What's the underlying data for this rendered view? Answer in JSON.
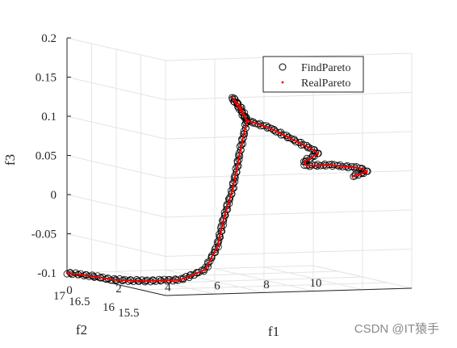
{
  "chart_data": {
    "type": "scatter",
    "projection": "3d",
    "axes": {
      "x": {
        "label": "f1",
        "range": [
          0,
          10
        ],
        "ticks": [
          "0",
          "2",
          "4",
          "6",
          "8",
          "10"
        ]
      },
      "y": {
        "label": "f2",
        "range": [
          15,
          17
        ],
        "ticks": [
          "17",
          "16.5",
          "16",
          "15.5"
        ]
      },
      "z": {
        "label": "f3",
        "range": [
          -0.1,
          0.2
        ],
        "ticks": [
          "-0.1",
          "-0.05",
          "0",
          "0.05",
          "0.1",
          "0.15",
          "0.2"
        ]
      }
    },
    "grid": true,
    "legend": {
      "placement": "top-right",
      "entries": [
        "FindPareto",
        "RealPareto"
      ]
    },
    "series": [
      {
        "name": "FindPareto",
        "marker": "open-circle",
        "color": "#000000",
        "path_points": [
          [
            0.0,
            17.0,
            -0.1
          ],
          [
            0.5,
            16.8,
            -0.101
          ],
          [
            1.0,
            16.55,
            -0.103
          ],
          [
            1.6,
            16.25,
            -0.101
          ],
          [
            2.4,
            15.9,
            -0.095
          ],
          [
            3.0,
            15.7,
            -0.08
          ],
          [
            3.4,
            15.65,
            -0.05
          ],
          [
            3.7,
            15.65,
            -0.01
          ],
          [
            4.0,
            15.65,
            0.02
          ],
          [
            4.2,
            15.65,
            0.05
          ],
          [
            4.35,
            15.65,
            0.075
          ],
          [
            4.5,
            15.65,
            0.095
          ],
          [
            4.6,
            15.65,
            0.11
          ],
          [
            4.3,
            15.65,
            0.13
          ],
          [
            4.0,
            15.65,
            0.14
          ],
          [
            4.6,
            15.65,
            0.11
          ],
          [
            5.5,
            15.65,
            0.1
          ],
          [
            6.7,
            15.65,
            0.08
          ],
          [
            7.3,
            15.65,
            0.07
          ],
          [
            7.5,
            15.65,
            0.065
          ],
          [
            6.9,
            15.65,
            0.055
          ],
          [
            7.0,
            15.65,
            0.05
          ],
          [
            8.0,
            15.65,
            0.05
          ],
          [
            9.2,
            15.65,
            0.045
          ],
          [
            9.5,
            15.65,
            0.04
          ],
          [
            8.9,
            15.65,
            0.035
          ]
        ]
      },
      {
        "name": "RealPareto",
        "marker": "point",
        "color": "#e00000",
        "path_points": [
          [
            0.0,
            17.0,
            -0.1
          ],
          [
            0.5,
            16.8,
            -0.101
          ],
          [
            1.0,
            16.55,
            -0.103
          ],
          [
            1.6,
            16.25,
            -0.101
          ],
          [
            2.4,
            15.9,
            -0.095
          ],
          [
            3.0,
            15.7,
            -0.08
          ],
          [
            3.4,
            15.65,
            -0.05
          ],
          [
            3.7,
            15.65,
            -0.01
          ],
          [
            4.0,
            15.65,
            0.02
          ],
          [
            4.2,
            15.65,
            0.05
          ],
          [
            4.35,
            15.65,
            0.075
          ],
          [
            4.5,
            15.65,
            0.095
          ],
          [
            4.6,
            15.65,
            0.11
          ],
          [
            4.3,
            15.65,
            0.13
          ],
          [
            4.0,
            15.65,
            0.14
          ],
          [
            4.6,
            15.65,
            0.11
          ],
          [
            5.5,
            15.65,
            0.1
          ],
          [
            6.7,
            15.65,
            0.08
          ],
          [
            7.3,
            15.65,
            0.07
          ],
          [
            7.5,
            15.65,
            0.065
          ],
          [
            6.9,
            15.65,
            0.055
          ],
          [
            7.0,
            15.65,
            0.05
          ],
          [
            8.0,
            15.65,
            0.05
          ],
          [
            9.2,
            15.65,
            0.045
          ],
          [
            9.5,
            15.65,
            0.04
          ],
          [
            8.9,
            15.65,
            0.035
          ]
        ]
      }
    ]
  },
  "watermark": "CSDN @IT猿手"
}
